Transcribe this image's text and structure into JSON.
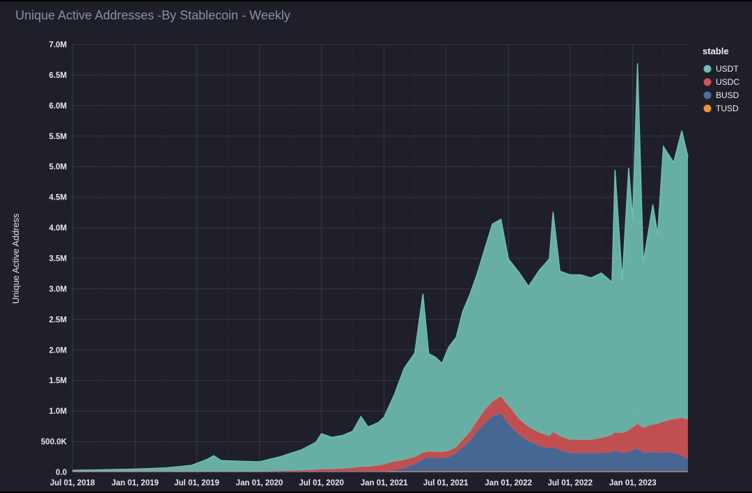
{
  "chart_data": {
    "type": "area",
    "stacked": true,
    "title": "Unique Active Addresses -By Stablecoin - Weekly",
    "xlabel": "",
    "ylabel": "Unique Active Address",
    "ylim": [
      0,
      7000000
    ],
    "yticks": [
      0,
      500000,
      1000000,
      1500000,
      2000000,
      2500000,
      3000000,
      3500000,
      4000000,
      4500000,
      5000000,
      5500000,
      6000000,
      6500000,
      7000000
    ],
    "ytick_labels": [
      "0.0",
      "500.0K",
      "1.0M",
      "1.5M",
      "2.0M",
      "2.5M",
      "3.0M",
      "3.5M",
      "4.0M",
      "4.5M",
      "5.0M",
      "5.5M",
      "6.0M",
      "6.5M",
      "7.0M"
    ],
    "x_range": [
      "2018-07-01",
      "2023-06-12"
    ],
    "xticks": [
      "2018-07-01",
      "2019-01-01",
      "2019-07-01",
      "2020-01-01",
      "2020-07-01",
      "2021-01-01",
      "2021-07-01",
      "2022-01-01",
      "2022-07-01",
      "2023-01-01"
    ],
    "xtick_labels": [
      "Jul 01, 2018",
      "Jan 01, 2019",
      "Jul 01, 2019",
      "Jan 01, 2020",
      "Jul 01, 2020",
      "Jan 01, 2021",
      "Jul 01, 2021",
      "Jan 01, 2022",
      "Jul 01, 2022",
      "Jan 01, 2023"
    ],
    "grid": true,
    "legend": {
      "title": "stable",
      "position": "top-right"
    },
    "x": [
      "2018-07-01",
      "2019-01-01",
      "2019-04-01",
      "2019-06-15",
      "2019-08-01",
      "2019-08-20",
      "2019-09-10",
      "2019-11-01",
      "2020-01-01",
      "2020-03-01",
      "2020-05-01",
      "2020-06-15",
      "2020-07-01",
      "2020-08-01",
      "2020-09-01",
      "2020-10-01",
      "2020-10-25",
      "2020-11-15",
      "2020-12-15",
      "2021-01-01",
      "2021-02-01",
      "2021-03-01",
      "2021-04-01",
      "2021-04-25",
      "2021-05-12",
      "2021-06-01",
      "2021-06-20",
      "2021-07-10",
      "2021-08-01",
      "2021-08-20",
      "2021-09-10",
      "2021-10-01",
      "2021-10-25",
      "2021-11-15",
      "2021-12-10",
      "2022-01-01",
      "2022-02-01",
      "2022-03-01",
      "2022-04-01",
      "2022-05-01",
      "2022-05-12",
      "2022-06-01",
      "2022-07-01",
      "2022-08-01",
      "2022-09-01",
      "2022-10-01",
      "2022-11-01",
      "2022-11-10",
      "2022-12-01",
      "2022-12-20",
      "2023-01-01",
      "2023-01-15",
      "2023-02-01",
      "2023-03-01",
      "2023-03-15",
      "2023-04-01",
      "2023-05-01",
      "2023-05-25",
      "2023-06-12"
    ],
    "series": [
      {
        "name": "USDT",
        "color": "#6fbfb2",
        "values": [
          20000,
          40000,
          60000,
          100000,
          200000,
          260000,
          180000,
          170000,
          160000,
          230000,
          330000,
          450000,
          580000,
          520000,
          540000,
          600000,
          820000,
          650000,
          700000,
          770000,
          1100000,
          1500000,
          1700000,
          2600000,
          1600000,
          1550000,
          1450000,
          1700000,
          1800000,
          2100000,
          2250000,
          2400000,
          2650000,
          2900000,
          2900000,
          2400000,
          2400000,
          2300000,
          2650000,
          2900000,
          3600000,
          2700000,
          2700000,
          2700000,
          2650000,
          2700000,
          2500000,
          4300000,
          2500000,
          4300000,
          3400000,
          5900000,
          2700000,
          3600000,
          3100000,
          4500000,
          4200000,
          4700000,
          4300000
        ]
      },
      {
        "name": "USDC",
        "color": "#d05454",
        "values": [
          0,
          0,
          0,
          0,
          0,
          0,
          0,
          0,
          0,
          10000,
          20000,
          30000,
          40000,
          40000,
          50000,
          60000,
          80000,
          80000,
          100000,
          120000,
          150000,
          130000,
          120000,
          110000,
          100000,
          100000,
          100000,
          100000,
          100000,
          120000,
          150000,
          180000,
          220000,
          250000,
          280000,
          300000,
          260000,
          230000,
          220000,
          200000,
          250000,
          230000,
          220000,
          220000,
          220000,
          250000,
          280000,
          300000,
          330000,
          350000,
          380000,
          400000,
          420000,
          450000,
          480000,
          500000,
          560000,
          620000,
          650000
        ]
      },
      {
        "name": "BUSD",
        "color": "#4a6ea0",
        "values": [
          0,
          0,
          0,
          0,
          0,
          0,
          0,
          0,
          0,
          0,
          0,
          0,
          0,
          0,
          0,
          0,
          0,
          0,
          0,
          0,
          20000,
          60000,
          120000,
          200000,
          230000,
          220000,
          220000,
          240000,
          300000,
          400000,
          500000,
          650000,
          800000,
          900000,
          950000,
          780000,
          600000,
          500000,
          420000,
          380000,
          400000,
          350000,
          300000,
          300000,
          300000,
          300000,
          320000,
          340000,
          300000,
          320000,
          350000,
          380000,
          300000,
          320000,
          300000,
          320000,
          300000,
          260000,
          200000
        ]
      },
      {
        "name": "TUSD",
        "color": "#f0922c",
        "values": [
          10000,
          10000,
          10000,
          10000,
          10000,
          10000,
          10000,
          10000,
          10000,
          10000,
          10000,
          10000,
          10000,
          10000,
          10000,
          10000,
          10000,
          10000,
          10000,
          10000,
          10000,
          10000,
          10000,
          10000,
          10000,
          10000,
          10000,
          10000,
          10000,
          10000,
          10000,
          10000,
          10000,
          10000,
          10000,
          10000,
          10000,
          10000,
          10000,
          10000,
          10000,
          10000,
          10000,
          10000,
          10000,
          10000,
          10000,
          10000,
          10000,
          10000,
          10000,
          10000,
          10000,
          10000,
          10000,
          10000,
          10000,
          10000,
          10000
        ]
      }
    ]
  }
}
